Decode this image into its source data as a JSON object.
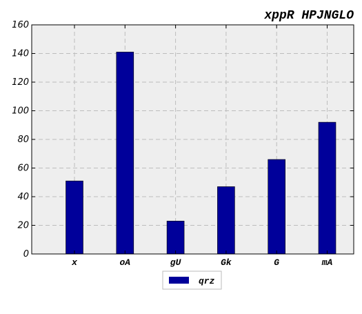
{
  "chart_data": {
    "type": "bar",
    "title": "xppR HPJNGLO",
    "xlabel": "",
    "ylabel": "",
    "categories": [
      "x",
      "oA",
      "gU",
      "Gk",
      "G",
      "mA"
    ],
    "series": [
      {
        "name": "qrz",
        "values": [
          51,
          141,
          23,
          47,
          66,
          92
        ]
      }
    ],
    "ylim": [
      0,
      160
    ],
    "yticks": [
      0,
      20,
      40,
      60,
      80,
      100,
      120,
      140,
      160
    ],
    "grid": true,
    "legend_position": "bottom-center",
    "colors": {
      "bar": "#00009a",
      "plot_background": "#eeeeee",
      "grid": "#bcbcbc"
    }
  }
}
